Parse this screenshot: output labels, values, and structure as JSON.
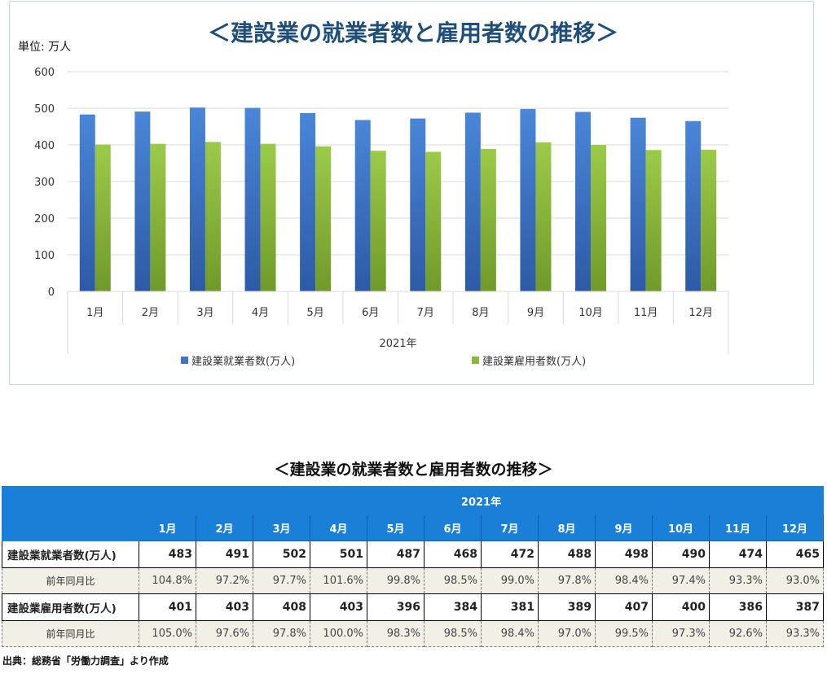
{
  "chart_data": {
    "type": "bar",
    "title": "＜建設業の就業者数と雇用者数の推移＞",
    "unit_label": "単位: 万人",
    "categories": [
      "1月",
      "2月",
      "3月",
      "4月",
      "5月",
      "6月",
      "7月",
      "8月",
      "9月",
      "10月",
      "11月",
      "12月"
    ],
    "x_group_label": "2021年",
    "ylim": [
      0,
      600
    ],
    "y_ticks": [
      0,
      100,
      200,
      300,
      400,
      500,
      600
    ],
    "grid": true,
    "legend_position": "bottom",
    "series": [
      {
        "name": "建設業就業者数(万人)",
        "color": "#4472c4",
        "values": [
          483,
          491,
          502,
          501,
          487,
          468,
          472,
          488,
          498,
          490,
          474,
          465
        ]
      },
      {
        "name": "建設業雇用者数(万人)",
        "color": "#8ab83a",
        "values": [
          401,
          403,
          408,
          403,
          396,
          384,
          381,
          389,
          407,
          400,
          386,
          387
        ]
      }
    ]
  },
  "table": {
    "title": "＜建設業の就業者数と雇用者数の推移＞",
    "year_header": "2021年",
    "months": [
      "1月",
      "2月",
      "3月",
      "4月",
      "5月",
      "6月",
      "7月",
      "8月",
      "9月",
      "10月",
      "11月",
      "12月"
    ],
    "rows": [
      {
        "label": "建設業就業者数(万人)",
        "values": [
          "483",
          "491",
          "502",
          "501",
          "487",
          "468",
          "472",
          "488",
          "498",
          "490",
          "474",
          "465"
        ],
        "kind": "main"
      },
      {
        "label": "前年同月比",
        "values": [
          "104.8%",
          "97.2%",
          "97.7%",
          "101.6%",
          "99.8%",
          "98.5%",
          "99.0%",
          "97.8%",
          "98.4%",
          "97.4%",
          "93.3%",
          "93.0%"
        ],
        "kind": "sub"
      },
      {
        "label": "建設業雇用者数(万人)",
        "values": [
          "401",
          "403",
          "408",
          "403",
          "396",
          "384",
          "381",
          "389",
          "407",
          "400",
          "386",
          "387"
        ],
        "kind": "main"
      },
      {
        "label": "前年同月比",
        "values": [
          "105.0%",
          "97.6%",
          "97.8%",
          "100.0%",
          "98.3%",
          "98.5%",
          "98.4%",
          "97.0%",
          "99.5%",
          "97.3%",
          "92.6%",
          "93.3%"
        ],
        "kind": "sub"
      }
    ]
  },
  "source_note": "出典：総務省「労働力調査」より作成"
}
